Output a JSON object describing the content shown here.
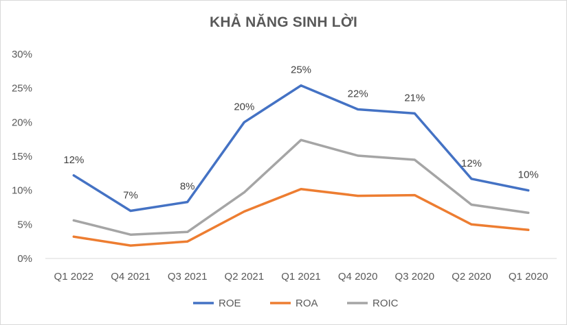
{
  "chart_data": {
    "type": "line",
    "title": "KHẢ NĂNG SINH LỜI",
    "categories": [
      "Q1 2022",
      "Q4 2021",
      "Q3 2021",
      "Q2 2021",
      "Q1 2021",
      "Q4 2020",
      "Q3 2020",
      "Q2 2020",
      "Q1 2020"
    ],
    "ylim": [
      0,
      30
    ],
    "ytick_labels": [
      "0%",
      "5%",
      "10%",
      "15%",
      "20%",
      "25%",
      "30%"
    ],
    "grid": false,
    "legend_position": "bottom",
    "series": [
      {
        "name": "ROE",
        "color": "#4472C4",
        "values": [
          12.2,
          7.0,
          8.3,
          20.0,
          25.4,
          21.9,
          21.3,
          11.7,
          10.0
        ],
        "data_labels": [
          "12%",
          "7%",
          "8%",
          "20%",
          "25%",
          "22%",
          "21%",
          "12%",
          "10%"
        ]
      },
      {
        "name": "ROA",
        "color": "#ED7D31",
        "values": [
          3.2,
          1.9,
          2.5,
          6.9,
          10.2,
          9.2,
          9.3,
          5.0,
          4.2
        ]
      },
      {
        "name": "ROIC",
        "color": "#A5A5A5",
        "values": [
          5.6,
          3.5,
          3.9,
          9.7,
          17.4,
          15.1,
          14.5,
          7.9,
          6.7
        ]
      }
    ]
  }
}
